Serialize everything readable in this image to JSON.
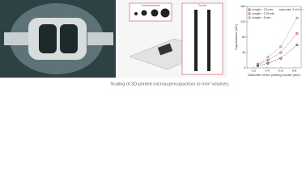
{
  "caption": "Scaling of 3D-printed microsupercapacitors to mm³ volumes.",
  "diagram": {
    "labels": [
      "Cross-sectional view",
      "Top view"
    ]
  },
  "chart_data": {
    "type": "scatter",
    "x_label": "Diameter of the printing nozzle (mm)",
    "y_label": "Capacitance (mF)",
    "annotation": "scan rate: 2 mV s⁻¹",
    "x": [
      0.26,
      0.41,
      0.6,
      0.84
    ],
    "series": [
      {
        "name": "Length = 2.5 mm",
        "color": "#333333",
        "values": [
          5,
          12,
          25,
          60
        ]
      },
      {
        "name": "Length = 3.75 mm",
        "color": "#d62728",
        "values": [
          8,
          20,
          40,
          90
        ]
      },
      {
        "name": "Length = 5 mm",
        "color": "#5b7fb0",
        "values": [
          10,
          28,
          55,
          130
        ]
      }
    ],
    "xlim": [
      0.1,
      0.9
    ],
    "xticks": [
      0.2,
      0.4,
      0.6,
      0.8
    ],
    "ylim": [
      0,
      160
    ],
    "yticks": [
      0,
      40,
      80,
      120,
      160
    ],
    "legend": "upper-left"
  }
}
